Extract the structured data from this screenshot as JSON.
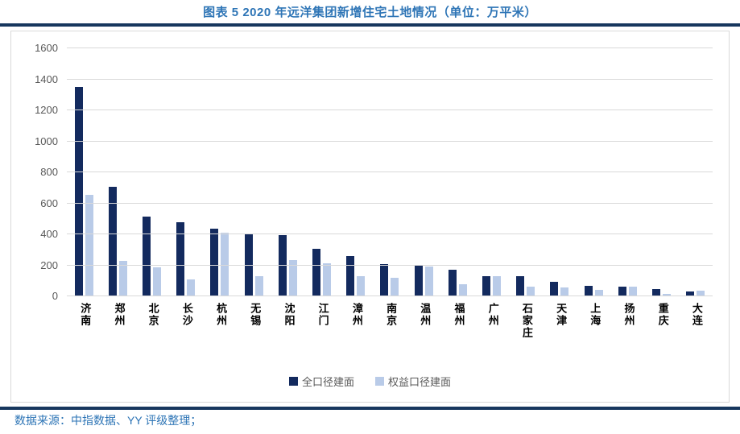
{
  "title": "图表 5 2020 年远洋集团新增住宅土地情况（单位：万平米）",
  "source": "数据来源：中指数据、YY 评级整理；",
  "colors": {
    "title_blue": "#2E75B6",
    "rule_navy": "#17375E",
    "grid_gray": "#D9D9D9",
    "axis_text_gray": "#595959"
  },
  "chart_data": {
    "type": "bar",
    "title": "2020 年远洋集团新增住宅土地情况",
    "unit": "万平米",
    "categories": [
      "济南",
      "郑州",
      "北京",
      "长沙",
      "杭州",
      "无锡",
      "沈阳",
      "江门",
      "漳州",
      "南京",
      "温州",
      "福州",
      "广州",
      "石家庄",
      "天津",
      "上海",
      "扬州",
      "重庆",
      "大连"
    ],
    "series": [
      {
        "name": "全口径建面",
        "color": "#132A5E",
        "values": [
          1350,
          705,
          515,
          477,
          435,
          405,
          397,
          305,
          258,
          207,
          203,
          170,
          128,
          128,
          95,
          67,
          60,
          45,
          30
        ]
      },
      {
        "name": "权益口径建面",
        "color": "#B9CBE8",
        "values": [
          655,
          230,
          185,
          110,
          413,
          132,
          235,
          215,
          128,
          120,
          193,
          78,
          130,
          60,
          55,
          40,
          63,
          14,
          36
        ]
      }
    ],
    "ylim": [
      0,
      1600
    ],
    "y_ticks": [
      0,
      200,
      400,
      600,
      800,
      1000,
      1200,
      1400,
      1600
    ],
    "grid": "horizontal",
    "legend_position": "bottom"
  }
}
